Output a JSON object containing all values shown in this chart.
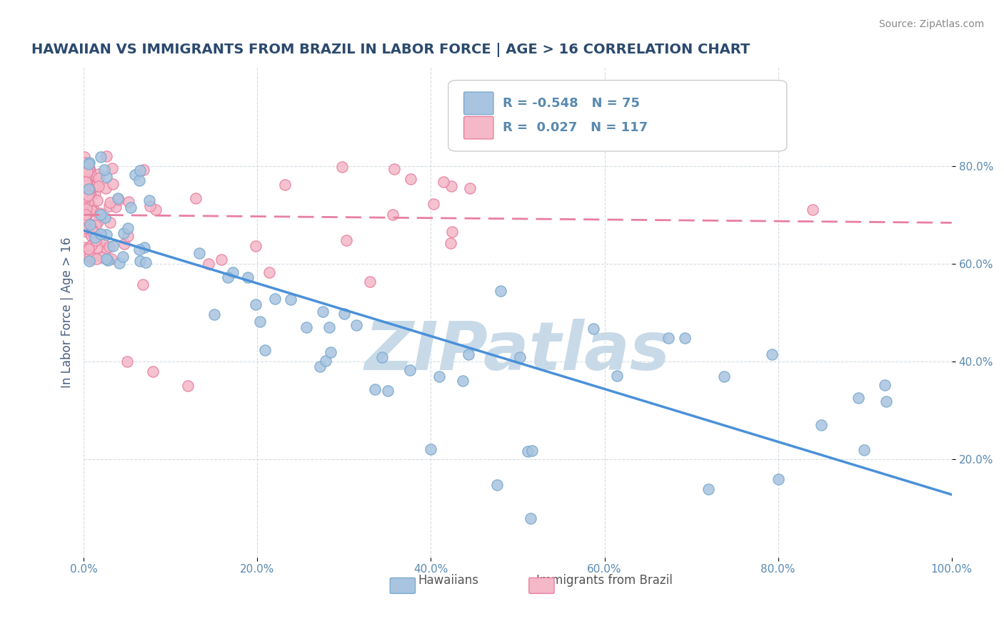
{
  "title": "HAWAIIAN VS IMMIGRANTS FROM BRAZIL IN LABOR FORCE | AGE > 16 CORRELATION CHART",
  "source_text": "Source: ZipAtlas.com",
  "ylabel": "In Labor Force | Age > 16",
  "xlabel": "",
  "xlim": [
    0,
    1.0
  ],
  "ylim": [
    0,
    1.0
  ],
  "xtick_labels": [
    "0.0%",
    "20.0%",
    "40.0%",
    "60.0%",
    "80.0%",
    "100.0%"
  ],
  "ytick_labels": [
    "20.0%",
    "40.0%",
    "60.0%",
    "80.0%"
  ],
  "hawaiians_R": -0.548,
  "hawaiians_N": 75,
  "brazil_R": 0.027,
  "brazil_N": 117,
  "hawaiians_color": "#a8c4e0",
  "hawaiians_edge": "#7aaace",
  "brazil_color": "#f4b8c8",
  "brazil_edge": "#e87fa0",
  "trendline_hawaiians_color": "#4a90d9",
  "trendline_brazil_color": "#e87fa0",
  "watermark_color": "#c8dae8",
  "legend_label_hawaiians": "Hawaiians",
  "legend_label_brazil": "Immigrants from Brazil",
  "background_color": "#ffffff",
  "grid_color": "#d0d8e0",
  "title_color": "#2c4a6e",
  "axis_label_color": "#4a6080",
  "tick_color": "#5a8ab0",
  "source_color": "#888888"
}
